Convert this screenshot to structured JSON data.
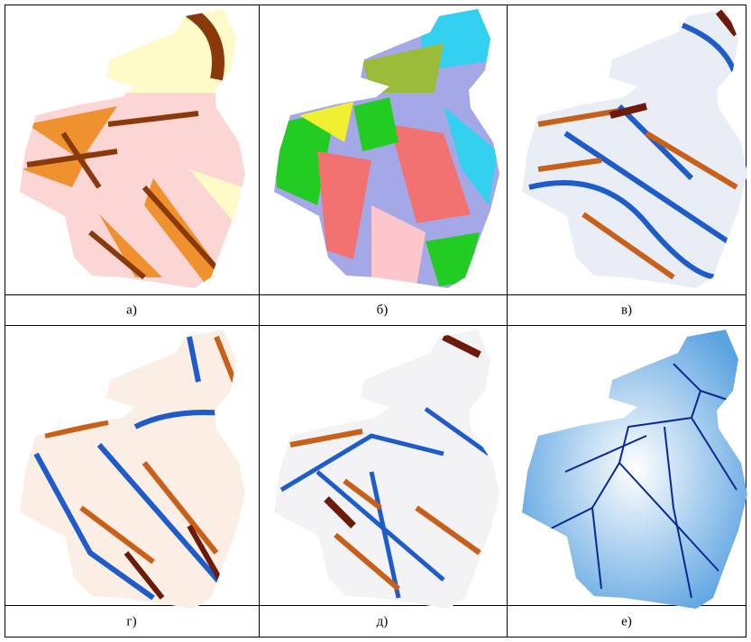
{
  "captions": [
    "а)",
    "б)",
    "в)",
    "г)",
    "д)",
    "е)"
  ]
}
